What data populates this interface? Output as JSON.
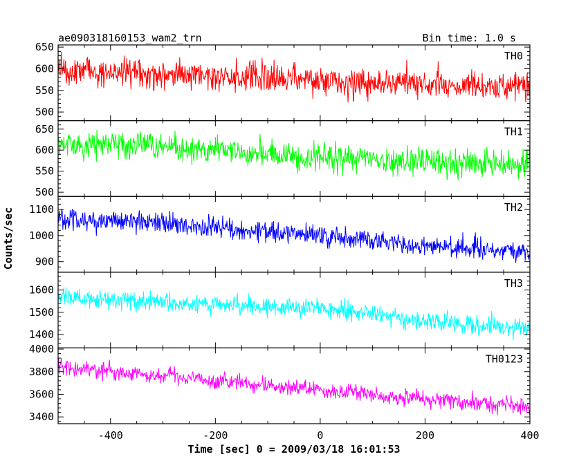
{
  "chart_data": {
    "type": "line",
    "title": "ae090318160153_wam2_trn",
    "bin_time": "Bin time: 1.0 s",
    "xlabel": "Time [sec] 0 = 2009/03/18 16:01:53",
    "ylabel": "Counts/sec",
    "xlim": [
      -500,
      400
    ],
    "xticks": [
      -400,
      -200,
      0,
      200,
      400
    ],
    "grid": false,
    "panels": [
      {
        "name": "TH0",
        "color": "#ff0000",
        "ylim": [
          480,
          655
        ],
        "yticks": [
          500,
          550,
          600,
          650
        ],
        "trend": {
          "x": [
            -500,
            -300,
            0,
            200,
            400
          ],
          "y": [
            595,
            588,
            572,
            565,
            558
          ]
        },
        "noise": 35
      },
      {
        "name": "TH1",
        "color": "#00ff00",
        "ylim": [
          490,
          670
        ],
        "yticks": [
          500,
          550,
          600,
          650
        ],
        "trend": {
          "x": [
            -500,
            -300,
            0,
            200,
            400
          ],
          "y": [
            615,
            607,
            582,
            572,
            568
          ]
        },
        "noise": 32
      },
      {
        "name": "TH2",
        "color": "#0000ff",
        "ylim": [
          860,
          1150
        ],
        "yticks": [
          900,
          1000,
          1100
        ],
        "trend": {
          "x": [
            -500,
            -300,
            0,
            200,
            400
          ],
          "y": [
            1065,
            1045,
            1000,
            960,
            940
          ]
        },
        "noise": 40
      },
      {
        "name": "TH3",
        "color": "#00ffff",
        "ylim": [
          1340,
          1680
        ],
        "yticks": [
          1400,
          1500,
          1600
        ],
        "trend": {
          "x": [
            -500,
            -300,
            0,
            200,
            400
          ],
          "y": [
            1570,
            1545,
            1520,
            1460,
            1430
          ]
        },
        "noise": 45
      },
      {
        "name": "TH0123",
        "color": "#ff00ff",
        "ylim": [
          3340,
          4010
        ],
        "yticks": [
          3400,
          3600,
          3800,
          4000
        ],
        "trend": {
          "x": [
            -500,
            -300,
            0,
            200,
            400
          ],
          "y": [
            3850,
            3760,
            3640,
            3560,
            3490
          ]
        },
        "noise": 75
      }
    ]
  }
}
